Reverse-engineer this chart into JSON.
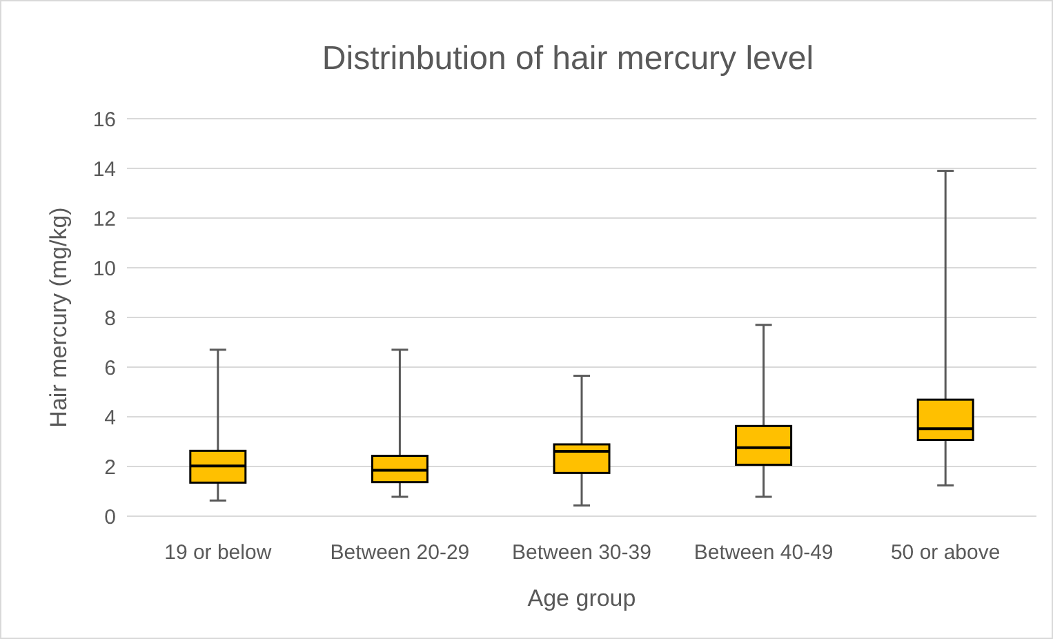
{
  "chart_data": {
    "type": "box",
    "title": "Distrinbution of hair mercury level",
    "xlabel": "Age group",
    "ylabel": "Hair mercury (mg/kg)",
    "categories": [
      "19 or below",
      "Between 20-29",
      "Between 30-39",
      "Between 40-49",
      "50 or above"
    ],
    "color": "#ffc000",
    "boxes": [
      {
        "low": 0.63,
        "q1": 1.35,
        "median": 2.02,
        "q3": 2.63,
        "high": 6.7
      },
      {
        "low": 0.78,
        "q1": 1.37,
        "median": 1.85,
        "q3": 2.43,
        "high": 6.7
      },
      {
        "low": 0.43,
        "q1": 1.74,
        "median": 2.61,
        "q3": 2.89,
        "high": 5.65
      },
      {
        "low": 0.78,
        "q1": 2.07,
        "median": 2.76,
        "q3": 3.63,
        "high": 7.7
      },
      {
        "low": 1.24,
        "q1": 3.07,
        "median": 3.52,
        "q3": 4.69,
        "high": 13.9
      }
    ],
    "ylim": [
      0,
      16
    ],
    "yticks": [
      0,
      2,
      4,
      6,
      8,
      10,
      12,
      14,
      16
    ],
    "grid": "y"
  }
}
